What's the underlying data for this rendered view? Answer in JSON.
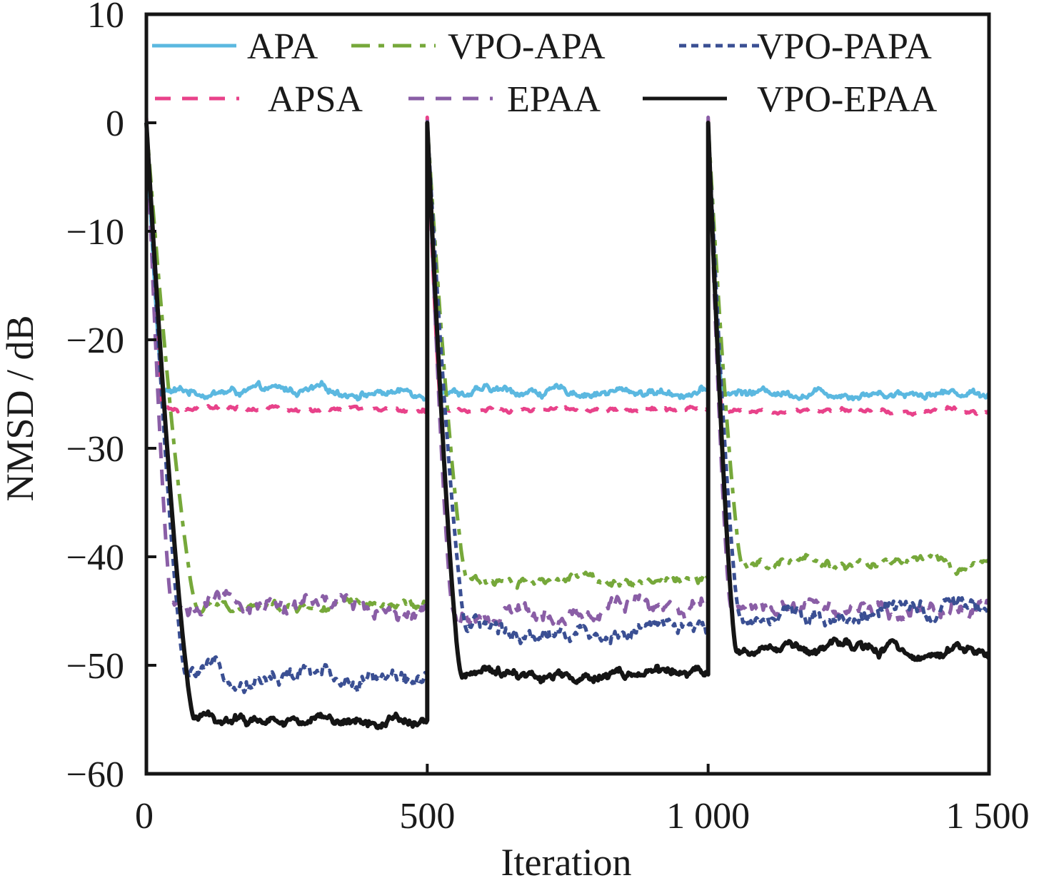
{
  "chart_data": {
    "type": "line",
    "title": "",
    "xlabel": "Iteration",
    "ylabel": "NMSD / dB",
    "xlim": [
      0,
      1500
    ],
    "ylim": [
      -60,
      10
    ],
    "x_ticks": [
      0,
      500,
      1000,
      1500
    ],
    "x_tick_labels": [
      "0",
      "500",
      "1 000",
      "1 500"
    ],
    "y_ticks": [
      10,
      0,
      -10,
      -20,
      -30,
      -40,
      -50,
      -60
    ],
    "y_tick_labels": [
      "10",
      "0",
      "−10",
      "−20",
      "−30",
      "−40",
      "−50",
      "−60"
    ],
    "grid": false,
    "legend_position": "top",
    "change_points": [
      0,
      500,
      1000
    ],
    "series": [
      {
        "name": "APA",
        "color": "#5bb8e0",
        "style": "solid",
        "start": 0,
        "convergence_iters": [
          30,
          25,
          25
        ],
        "steady_state": [
          -24.8,
          -24.8,
          -24.8
        ],
        "noise": 0.25
      },
      {
        "name": "VPO-APA",
        "color": "#76a83a",
        "style": "dash-dot",
        "start": 0,
        "convergence_iters": [
          90,
          70,
          60
        ],
        "steady_state": [
          -44.7,
          -42.0,
          -40.7
        ],
        "noise": 0.3
      },
      {
        "name": "VPO-PAPA",
        "color": "#3a4f93",
        "style": "dotted",
        "start": 0,
        "convergence_iters": [
          70,
          70,
          55
        ],
        "steady_state": [
          -51.0,
          -46.8,
          -45.2
        ],
        "noise": 0.5
      },
      {
        "name": "APSA",
        "color": "#e8428a",
        "style": "dashed",
        "start": 0.5,
        "convergence_iters": [
          30,
          25,
          25
        ],
        "steady_state": [
          -26.5,
          -26.5,
          -26.6
        ],
        "noise": 0.15
      },
      {
        "name": "EPAA",
        "color": "#8a5ea6",
        "style": "dashed",
        "start": 0.5,
        "convergence_iters": [
          45,
          45,
          40
        ],
        "steady_state": [
          -44.5,
          -44.8,
          -44.6
        ],
        "noise": 0.5
      },
      {
        "name": "VPO-EPAA",
        "color": "#151515",
        "style": "solid",
        "start": 0,
        "convergence_iters": [
          85,
          60,
          50
        ],
        "steady_state": [
          -55.0,
          -50.8,
          -48.7
        ],
        "noise": 0.3
      }
    ]
  }
}
